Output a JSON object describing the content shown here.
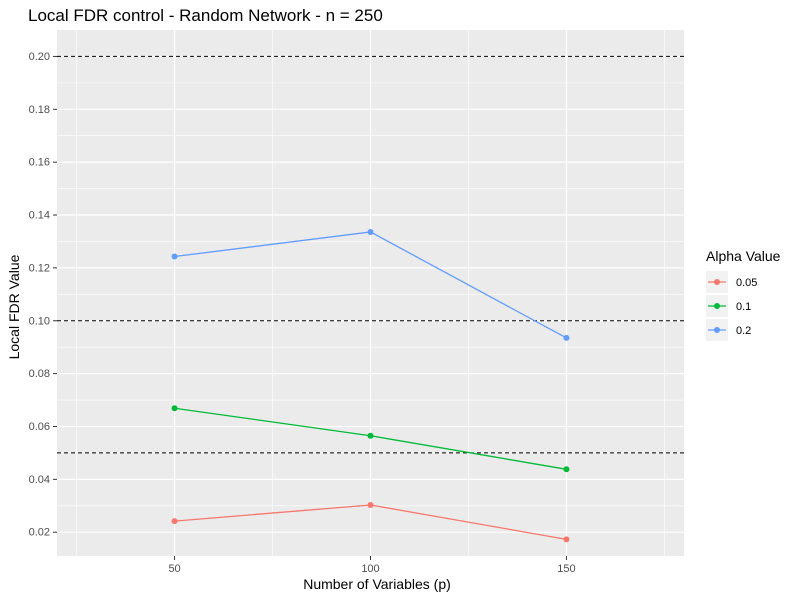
{
  "chart_data": {
    "type": "line",
    "title": "Local FDR control - Random Network - n = 250",
    "xlabel": "Number of Variables (p)",
    "ylabel": "Local FDR Value",
    "x": [
      50,
      100,
      150
    ],
    "x_ticks": [
      "50",
      "100",
      "150"
    ],
    "xlim": [
      20,
      180
    ],
    "ylim": [
      0.011,
      0.21
    ],
    "y_ticks": [
      "0.02",
      "0.04",
      "0.06",
      "0.08",
      "0.10",
      "0.12",
      "0.14",
      "0.16",
      "0.18",
      "0.20"
    ],
    "hlines": [
      0.05,
      0.1,
      0.2
    ],
    "grid": true,
    "legend": {
      "title": "Alpha Value",
      "position": "right"
    },
    "series": [
      {
        "name": "0.05",
        "color": "#F8766D",
        "values": [
          0.0242,
          0.0303,
          0.0173
        ]
      },
      {
        "name": "0.1",
        "color": "#00BA38",
        "values": [
          0.0669,
          0.0565,
          0.0438
        ]
      },
      {
        "name": "0.2",
        "color": "#619CFF",
        "values": [
          0.1243,
          0.1336,
          0.0935
        ]
      }
    ],
    "panel_color": "#EBEBEB"
  }
}
